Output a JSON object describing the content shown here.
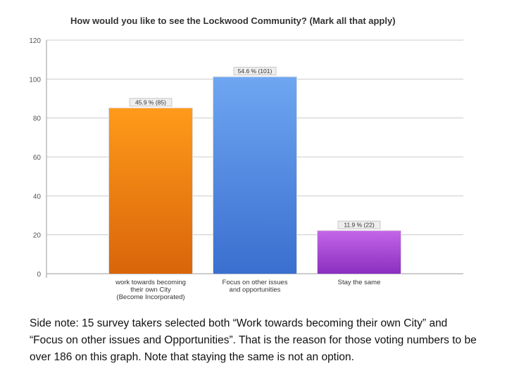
{
  "chart_data": {
    "type": "bar",
    "title": "How would you like to see the Lockwood Community? (Mark all that apply)",
    "xlabel": "",
    "ylabel": "",
    "ylim": [
      0,
      120
    ],
    "yticks": [
      0,
      20,
      40,
      60,
      80,
      100,
      120
    ],
    "grid": true,
    "categories": [
      [
        "work towards becoming",
        "their own City",
        "(Become Incorporated)"
      ],
      [
        "Focus on other issues",
        "and opportunities"
      ],
      [
        "Stay the same"
      ]
    ],
    "values": [
      85,
      101,
      22
    ],
    "data_labels": [
      "45.9 % (85)",
      "54.6 % (101)",
      "11.9 % (22)"
    ],
    "colors": [
      [
        "#ff9a1a",
        "#d9650a"
      ],
      [
        "#6ea6f2",
        "#3a6fcf"
      ],
      [
        "#c466e8",
        "#8a2fbf"
      ]
    ]
  },
  "side_note": "Side note: 15 survey takers selected both “Work towards becoming their own City” and “Focus on other issues and Opportunities”. That is the reason for those voting numbers to be over 186 on this graph. Note that staying the same is not an option."
}
